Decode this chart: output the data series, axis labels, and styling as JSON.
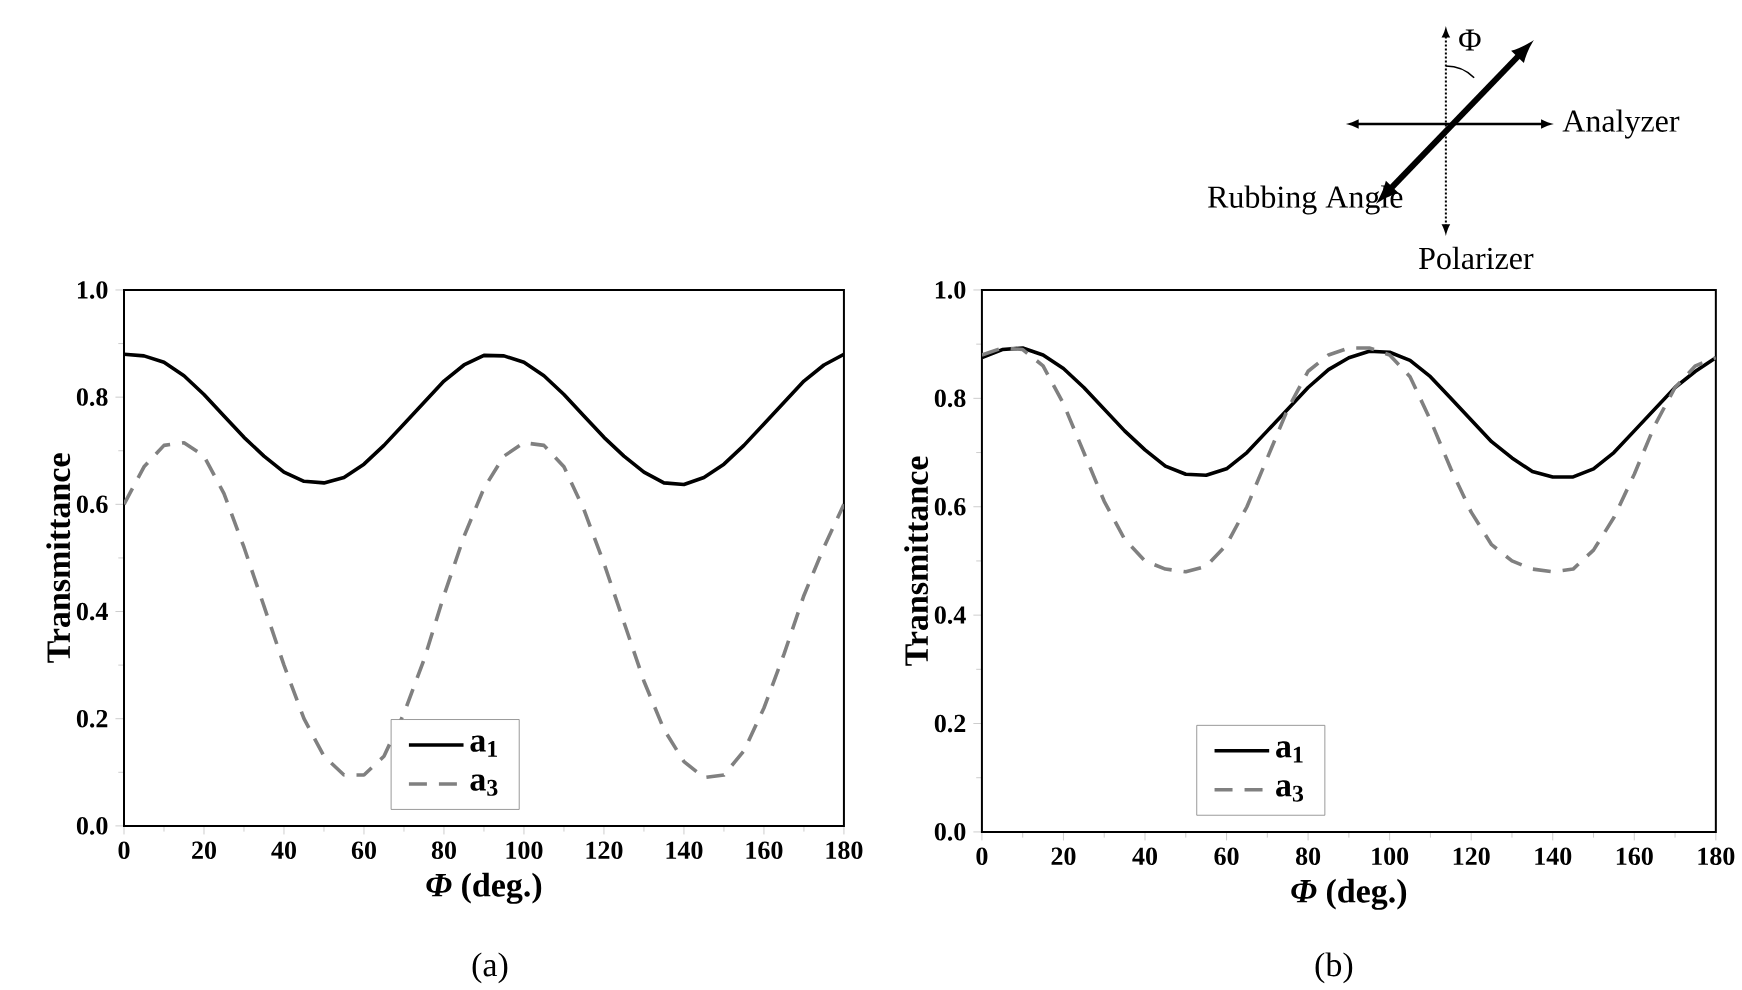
{
  "chart_data": [
    {
      "type": "line",
      "xlabel": "*Φ* (deg.)",
      "ylabel": "Transmittance",
      "annotations": [
        "(a)"
      ],
      "legend": "bottom",
      "xlim": [
        0,
        180
      ],
      "ylim": [
        0,
        1
      ],
      "xticks": [
        0,
        20,
        40,
        60,
        80,
        100,
        120,
        140,
        160,
        180
      ],
      "yticks": [
        {
          "value": 0,
          "label": "0.0"
        },
        {
          "value": 0.2,
          "label": "0.2"
        },
        {
          "value": 0.4,
          "label": "0.4"
        },
        {
          "value": 0.6,
          "label": "0.6"
        },
        {
          "value": 0.8,
          "label": "0.8"
        },
        {
          "value": 1,
          "label": "1.0"
        }
      ],
      "x": [
        0,
        5,
        10,
        15,
        20,
        25,
        30,
        35,
        40,
        45,
        50,
        55,
        60,
        65,
        70,
        75,
        80,
        85,
        90,
        95,
        100,
        105,
        110,
        115,
        120,
        125,
        130,
        135,
        140,
        145,
        150,
        155,
        160,
        165,
        170,
        175,
        180
      ],
      "series": [
        {
          "name": "a$_{1}$",
          "color": "#000000",
          "line_style": "solid",
          "values": [
            0.88,
            0.877,
            0.865,
            0.84,
            0.805,
            0.765,
            0.725,
            0.69,
            0.66,
            0.643,
            0.64,
            0.65,
            0.675,
            0.71,
            0.75,
            0.79,
            0.83,
            0.86,
            0.878,
            0.877,
            0.865,
            0.84,
            0.805,
            0.765,
            0.725,
            0.69,
            0.66,
            0.64,
            0.637,
            0.65,
            0.675,
            0.71,
            0.75,
            0.79,
            0.83,
            0.86,
            0.88
          ]
        },
        {
          "name": "a$_{3}$",
          "color": "#808080",
          "line_style": "dashed",
          "values": [
            0.6,
            0.67,
            0.71,
            0.715,
            0.69,
            0.62,
            0.52,
            0.41,
            0.3,
            0.2,
            0.13,
            0.095,
            0.095,
            0.13,
            0.21,
            0.31,
            0.43,
            0.54,
            0.63,
            0.69,
            0.715,
            0.71,
            0.67,
            0.59,
            0.49,
            0.38,
            0.27,
            0.18,
            0.12,
            0.09,
            0.095,
            0.14,
            0.22,
            0.32,
            0.43,
            0.52,
            0.6
          ]
        }
      ]
    },
    {
      "type": "line",
      "xlabel": "*Φ* (deg.)",
      "ylabel": "Transmittance",
      "annotations": [
        "Φ",
        "Analyzer",
        "Rubbing Angle",
        "Polarizer",
        "(b)"
      ],
      "legend": "bottom",
      "xlim": [
        0,
        180
      ],
      "ylim": [
        0,
        1
      ],
      "xticks": [
        0,
        20,
        40,
        60,
        80,
        100,
        120,
        140,
        160,
        180
      ],
      "yticks": [
        {
          "value": 0,
          "label": "0.0"
        },
        {
          "value": 0.2,
          "label": "0.2"
        },
        {
          "value": 0.4,
          "label": "0.4"
        },
        {
          "value": 0.6,
          "label": "0.6"
        },
        {
          "value": 0.8,
          "label": "0.8"
        },
        {
          "value": 1,
          "label": "1.0"
        }
      ],
      "x": [
        0,
        5,
        10,
        15,
        20,
        25,
        30,
        35,
        40,
        45,
        50,
        55,
        60,
        65,
        70,
        75,
        80,
        85,
        90,
        95,
        100,
        105,
        110,
        115,
        120,
        125,
        130,
        135,
        140,
        145,
        150,
        155,
        160,
        165,
        170,
        175,
        180
      ],
      "series": [
        {
          "name": "a$_{1}$",
          "color": "#000000",
          "line_style": "solid",
          "values": [
            0.875,
            0.89,
            0.893,
            0.88,
            0.855,
            0.82,
            0.78,
            0.74,
            0.705,
            0.675,
            0.66,
            0.658,
            0.67,
            0.7,
            0.74,
            0.78,
            0.82,
            0.853,
            0.875,
            0.887,
            0.885,
            0.87,
            0.84,
            0.8,
            0.76,
            0.72,
            0.69,
            0.665,
            0.655,
            0.655,
            0.67,
            0.7,
            0.74,
            0.78,
            0.82,
            0.85,
            0.875
          ]
        },
        {
          "name": "a$_{3}$",
          "color": "#808080",
          "line_style": "dashed",
          "values": [
            0.88,
            0.893,
            0.89,
            0.86,
            0.79,
            0.7,
            0.61,
            0.54,
            0.5,
            0.485,
            0.48,
            0.49,
            0.53,
            0.6,
            0.69,
            0.78,
            0.85,
            0.88,
            0.893,
            0.893,
            0.88,
            0.84,
            0.76,
            0.67,
            0.59,
            0.53,
            0.5,
            0.485,
            0.48,
            0.485,
            0.52,
            0.58,
            0.66,
            0.75,
            0.82,
            0.86,
            0.875
          ]
        }
      ]
    }
  ]
}
